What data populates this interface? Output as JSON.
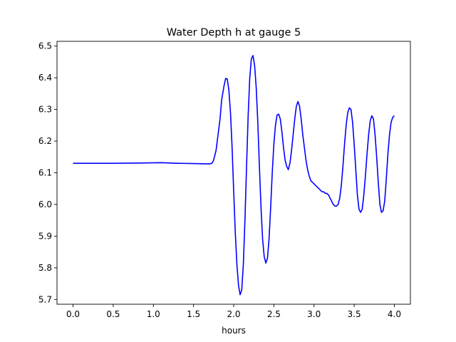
{
  "chart_data": {
    "type": "line",
    "title": "Water Depth h at gauge 5",
    "xlabel": "hours",
    "ylabel": "",
    "xlim": [
      -0.2,
      4.2
    ],
    "ylim": [
      5.685,
      6.515
    ],
    "xticks": [
      0.0,
      0.5,
      1.0,
      1.5,
      2.0,
      2.5,
      3.0,
      3.5,
      4.0
    ],
    "xtick_labels": [
      "0.0",
      "0.5",
      "1.0",
      "1.5",
      "2.0",
      "2.5",
      "3.0",
      "3.5",
      "4.0"
    ],
    "yticks": [
      5.7,
      5.8,
      5.9,
      6.0,
      6.1,
      6.2,
      6.3,
      6.4,
      6.5
    ],
    "ytick_labels": [
      "5.7",
      "5.8",
      "5.9",
      "6.0",
      "6.1",
      "6.2",
      "6.3",
      "6.4",
      "6.5"
    ],
    "grid": false,
    "series": [
      {
        "name": "",
        "color": "#0000ff",
        "x": [
          0.0,
          0.5,
          0.9,
          1.1,
          1.3,
          1.5,
          1.7,
          1.73,
          1.75,
          1.78,
          1.8,
          1.83,
          1.85,
          1.88,
          1.9,
          1.92,
          1.94,
          1.96,
          1.98,
          2.0,
          2.02,
          2.04,
          2.06,
          2.08,
          2.1,
          2.12,
          2.14,
          2.16,
          2.18,
          2.2,
          2.22,
          2.24,
          2.26,
          2.28,
          2.3,
          2.32,
          2.34,
          2.36,
          2.38,
          2.4,
          2.42,
          2.44,
          2.46,
          2.48,
          2.5,
          2.52,
          2.54,
          2.56,
          2.58,
          2.6,
          2.62,
          2.64,
          2.66,
          2.68,
          2.7,
          2.72,
          2.74,
          2.76,
          2.78,
          2.8,
          2.82,
          2.84,
          2.86,
          2.88,
          2.9,
          2.92,
          2.94,
          2.96,
          2.98,
          3.0,
          3.02,
          3.04,
          3.06,
          3.08,
          3.1,
          3.12,
          3.14,
          3.16,
          3.18,
          3.2,
          3.22,
          3.24,
          3.26,
          3.28,
          3.3,
          3.32,
          3.34,
          3.36,
          3.38,
          3.4,
          3.42,
          3.44,
          3.46,
          3.48,
          3.5,
          3.52,
          3.54,
          3.56,
          3.58,
          3.6,
          3.62,
          3.64,
          3.66,
          3.68,
          3.7,
          3.72,
          3.74,
          3.76,
          3.78,
          3.8,
          3.82,
          3.84,
          3.86,
          3.88,
          3.9,
          3.92,
          3.94,
          3.96,
          3.98,
          4.0
        ],
        "y": [
          6.13,
          6.13,
          6.131,
          6.132,
          6.13,
          6.129,
          6.128,
          6.13,
          6.14,
          6.17,
          6.21,
          6.27,
          6.33,
          6.375,
          6.398,
          6.396,
          6.36,
          6.29,
          6.18,
          6.04,
          5.91,
          5.81,
          5.745,
          5.715,
          5.73,
          5.81,
          5.95,
          6.12,
          6.28,
          6.4,
          6.46,
          6.47,
          6.44,
          6.37,
          6.26,
          6.12,
          5.99,
          5.89,
          5.835,
          5.815,
          5.83,
          5.89,
          5.99,
          6.1,
          6.19,
          6.25,
          6.282,
          6.285,
          6.27,
          6.23,
          6.18,
          6.14,
          6.12,
          6.11,
          6.13,
          6.17,
          6.22,
          6.27,
          6.31,
          6.325,
          6.31,
          6.27,
          6.22,
          6.18,
          6.14,
          6.11,
          6.09,
          6.075,
          6.07,
          6.065,
          6.06,
          6.055,
          6.05,
          6.045,
          6.04,
          6.04,
          6.035,
          6.035,
          6.03,
          6.02,
          6.01,
          6.0,
          5.995,
          5.995,
          6.0,
          6.02,
          6.06,
          6.12,
          6.19,
          6.25,
          6.29,
          6.305,
          6.3,
          6.26,
          6.19,
          6.11,
          6.03,
          5.985,
          5.975,
          5.985,
          6.03,
          6.09,
          6.16,
          6.22,
          6.265,
          6.28,
          6.27,
          6.22,
          6.15,
          6.07,
          6.0,
          5.975,
          5.98,
          6.01,
          6.08,
          6.16,
          6.22,
          6.26,
          6.275,
          6.28
        ]
      }
    ]
  }
}
